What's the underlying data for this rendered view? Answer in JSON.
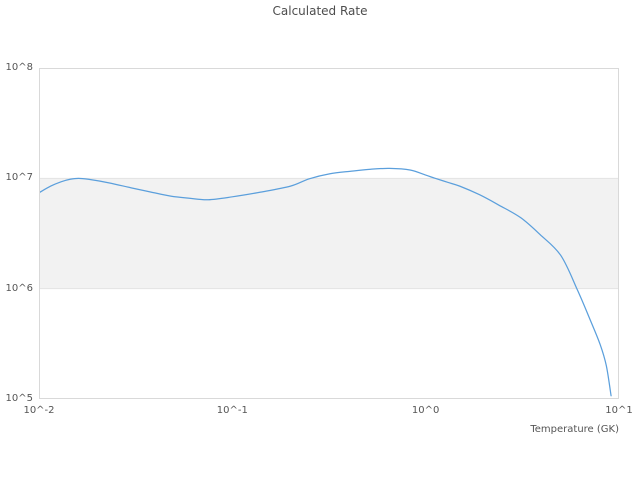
{
  "chart": {
    "title": "Calculated Rate",
    "xlabel": "Temperature (GK)"
  },
  "colors": {
    "line": "#5b9fdc",
    "band_fill": "#f2f2f2",
    "band_edge": "#e3e3e3",
    "plot_border": "#d9d9d9",
    "title_text": "#4d4d4d",
    "tick_text": "#555555",
    "background": "#ffffff"
  },
  "chart_data": {
    "type": "line",
    "title": "Calculated Rate",
    "xlabel": "Temperature (GK)",
    "ylabel": "",
    "x_scale": "log",
    "y_scale": "log",
    "xlim": [
      0.01,
      10
    ],
    "ylim": [
      100000.0,
      100000000.0
    ],
    "grid": false,
    "legend_position": "none",
    "x_ticks": [
      {
        "v": 0.01,
        "label": "10^-2"
      },
      {
        "v": 0.1,
        "label": "10^-1"
      },
      {
        "v": 1,
        "label": "10^0"
      },
      {
        "v": 10,
        "label": "10^1"
      }
    ],
    "y_ticks": [
      {
        "v": 100000000.0,
        "label": "10^8"
      },
      {
        "v": 10000000.0,
        "label": "10^7"
      },
      {
        "v": 1000000.0,
        "label": "10^6"
      },
      {
        "v": 100000.0,
        "label": "10^5"
      }
    ],
    "plot_band": {
      "from": 1000000.0,
      "to": 10000000.0
    },
    "series": [
      {
        "name": "Calculated Rate",
        "x": [
          0.01,
          0.0115,
          0.013,
          0.0145,
          0.016,
          0.018,
          0.023,
          0.03,
          0.038,
          0.048,
          0.06,
          0.075,
          0.1,
          0.14,
          0.2,
          0.25,
          0.32,
          0.41,
          0.52,
          0.65,
          0.83,
          1.0,
          1.12,
          1.3,
          1.5,
          1.9,
          2.4,
          3.1,
          3.9,
          5.0,
          6.1,
          7.1,
          8.0,
          8.6,
          9.1
        ],
        "y": [
          7400000.0,
          8500000.0,
          9300000.0,
          9800000.0,
          10000000.0,
          9800000.0,
          9100000.0,
          8200000.0,
          7500000.0,
          6900000.0,
          6600000.0,
          6400000.0,
          6800000.0,
          7500000.0,
          8500000.0,
          9900000.0,
          11000000.0,
          11600000.0,
          12100000.0,
          12300000.0,
          11900000.0,
          10700000.0,
          10000000.0,
          9200000.0,
          8500000.0,
          7100000.0,
          5700000.0,
          4400000.0,
          3100000.0,
          2000000.0,
          970000.0,
          520000.0,
          310000.0,
          200000.0,
          107000.0
        ]
      }
    ]
  }
}
